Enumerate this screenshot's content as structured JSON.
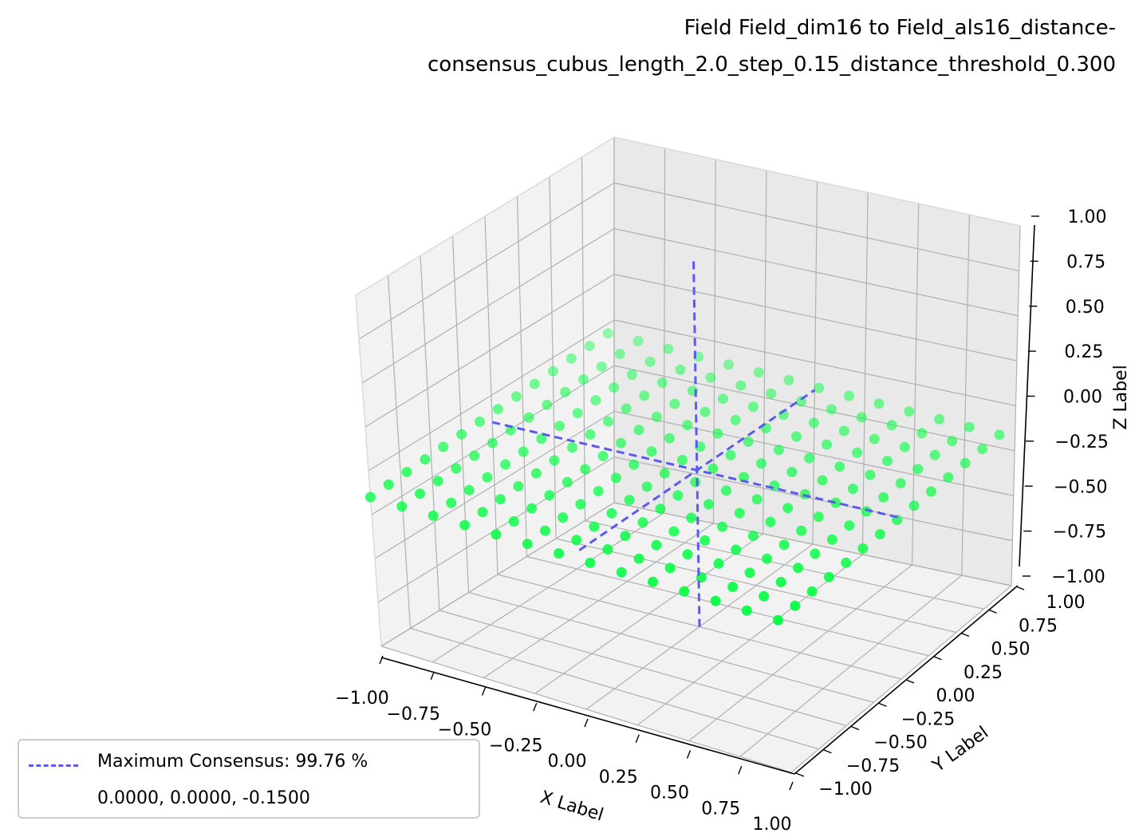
{
  "chart_data": {
    "type": "scatter3d",
    "title_lines": [
      "Field Field_dim16 to Field_als16_distance-",
      "consensus_cubus_length_2.0_step_0.15_distance_threshold_0.300"
    ],
    "xlabel": "X Label",
    "ylabel": "Y Label",
    "zlabel": "Z Label",
    "xlim": [
      -1.0,
      1.0
    ],
    "ylim": [
      -1.0,
      1.0
    ],
    "zlim": [
      -1.0,
      1.0
    ],
    "x_ticks": [
      "−1.00",
      "−0.75",
      "−0.50",
      "−0.25",
      "0.00",
      "0.25",
      "0.50",
      "0.75",
      "1.00"
    ],
    "y_ticks": [
      "−1.00",
      "−0.75",
      "−0.50",
      "−0.25",
      "0.00",
      "0.25",
      "0.50",
      "0.75",
      "1.00"
    ],
    "z_ticks": [
      "−1.00",
      "−0.75",
      "−0.50",
      "−0.25",
      "0.00",
      "0.25",
      "0.50",
      "0.75",
      "1.00"
    ],
    "tick_values": [
      -1.0,
      -0.75,
      -0.5,
      -0.25,
      0.0,
      0.25,
      0.5,
      0.75,
      1.0
    ],
    "grid": true,
    "point_color": "#00ff40",
    "line_color": "#5b5bef",
    "points": {
      "x_range": [
        -1.0,
        1.0
      ],
      "y_range": [
        -1.0,
        1.0
      ],
      "step": 0.15,
      "z_surface": "slight tilt around z = -0.15"
    },
    "maximum": {
      "x": 0.0,
      "y": 0.0,
      "z": -0.15
    },
    "legend": {
      "placement": "lower-left",
      "label": "Maximum Consensus: 99.76 %",
      "coords": "0.0000, 0.0000, -0.1500"
    }
  }
}
